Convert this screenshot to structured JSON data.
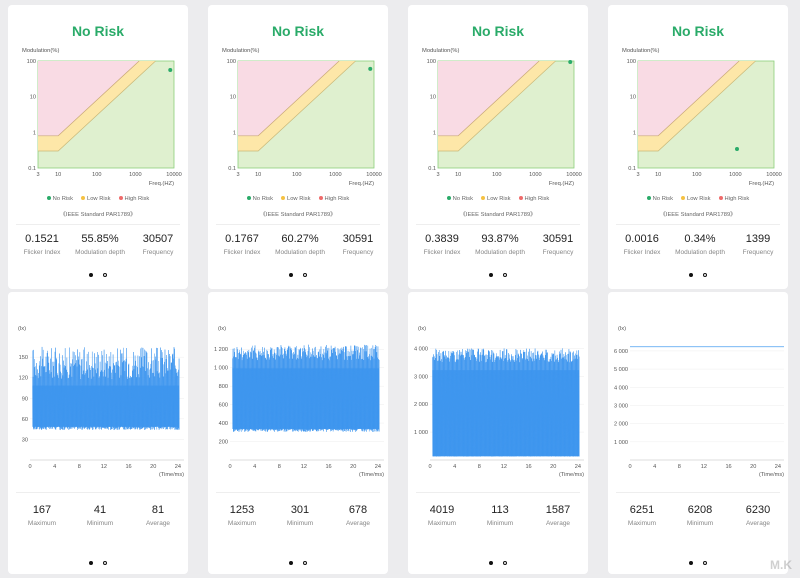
{
  "top_cards": [
    {
      "risk": "No Risk",
      "point": {
        "freq": 8000,
        "mod": 55.85
      },
      "stats": [
        {
          "value": "0.1521",
          "label": "Flicker Index"
        },
        {
          "value": "55.85%",
          "label": "Modulation depth"
        },
        {
          "value": "30507",
          "label": "Frequency"
        }
      ]
    },
    {
      "risk": "No Risk",
      "point": {
        "freq": 8000,
        "mod": 60.27
      },
      "stats": [
        {
          "value": "0.1767",
          "label": "Flicker Index"
        },
        {
          "value": "60.27%",
          "label": "Modulation depth"
        },
        {
          "value": "30591",
          "label": "Frequency"
        }
      ]
    },
    {
      "risk": "No Risk",
      "point": {
        "freq": 8000,
        "mod": 93.87
      },
      "stats": [
        {
          "value": "0.3839",
          "label": "Flicker Index"
        },
        {
          "value": "93.87%",
          "label": "Modulation depth"
        },
        {
          "value": "30591",
          "label": "Frequency"
        }
      ]
    },
    {
      "risk": "No Risk",
      "point": {
        "freq": 1100,
        "mod": 0.34
      },
      "stats": [
        {
          "value": "0.0016",
          "label": "Flicker Index"
        },
        {
          "value": "0.34%",
          "label": "Modulation depth"
        },
        {
          "value": "1399",
          "label": "Frequency"
        }
      ]
    }
  ],
  "risk_chart": {
    "ylabel": "Modulation(%)",
    "xlabel": "Freq.(HZ)",
    "x_ticks": [
      "3",
      "10",
      "100",
      "1000",
      "10000"
    ],
    "y_ticks": [
      "100",
      "10",
      "1",
      "0.1"
    ],
    "legend": [
      {
        "label": "No Risk",
        "color": "#2aab69"
      },
      {
        "label": "Low Risk",
        "color": "#f5c242"
      },
      {
        "label": "High Risk",
        "color": "#ef6b6b"
      }
    ],
    "standard": "《IEEE Standard PAR1789》",
    "colors": {
      "no_risk": "#dff0cf",
      "low_risk": "#fde7a8",
      "high_risk": "#f9dbe4",
      "grid_border": "#8ccf7a",
      "dot": "#2aab69"
    }
  },
  "bottom_cards": [
    {
      "unit": "(lx)",
      "xlabel": "(Time/ms)",
      "y_ticks": [
        "30",
        "60",
        "90",
        "120",
        "150"
      ],
      "stats": [
        {
          "value": "167",
          "label": "Maximum"
        },
        {
          "value": "41",
          "label": "Minimum"
        },
        {
          "value": "81",
          "label": "Average"
        }
      ],
      "wave": {
        "ymax": 175,
        "base": 46,
        "mid": 78,
        "top_lo": 118,
        "top_hi": 165
      }
    },
    {
      "unit": "(lx)",
      "xlabel": "(Time/ms)",
      "y_ticks": [
        "200",
        "400",
        "600",
        "800",
        "1 000",
        "1 200"
      ],
      "stats": [
        {
          "value": "1253",
          "label": "Maximum"
        },
        {
          "value": "301",
          "label": "Minimum"
        },
        {
          "value": "678",
          "label": "Average"
        }
      ],
      "wave": {
        "ymax": 1300,
        "base": 320,
        "mid": 640,
        "top_lo": 1080,
        "top_hi": 1250
      }
    },
    {
      "unit": "(lx)",
      "xlabel": "(Time/ms)",
      "y_ticks": [
        "1 000",
        "2 000",
        "3 000",
        "4 000"
      ],
      "stats": [
        {
          "value": "4019",
          "label": "Maximum"
        },
        {
          "value": "113",
          "label": "Minimum"
        },
        {
          "value": "1587",
          "label": "Average"
        }
      ],
      "wave": {
        "ymax": 4300,
        "base": 130,
        "mid": 1500,
        "top_lo": 3500,
        "top_hi": 4000
      }
    },
    {
      "unit": "(lx)",
      "xlabel": "(Time/ms)",
      "y_ticks": [
        "1 000",
        "2 000",
        "3 000",
        "4 000",
        "5 000",
        "6 000"
      ],
      "stats": [
        {
          "value": "6251",
          "label": "Maximum"
        },
        {
          "value": "6208",
          "label": "Minimum"
        },
        {
          "value": "6230",
          "label": "Average"
        }
      ],
      "wave": {
        "ymax": 6600,
        "flat": 6230
      }
    }
  ],
  "time_ticks": [
    "0",
    "4",
    "8",
    "12",
    "16",
    "20",
    "24"
  ],
  "watermark": "M.K"
}
